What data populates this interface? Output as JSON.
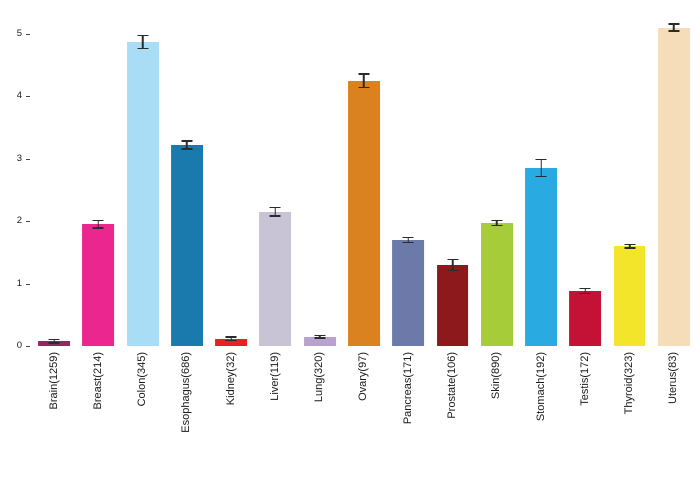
{
  "chart_data": {
    "type": "bar",
    "title": "",
    "xlabel": "",
    "ylabel": "",
    "categories": [
      "Brain(1259)",
      "Breast(214)",
      "Colon(345)",
      "Esophagus(686)",
      "Kidney(32)",
      "Liver(119)",
      "Lung(320)",
      "Ovary(97)",
      "Pancreas(171)",
      "Prostate(106)",
      "Skin(890)",
      "Stomach(192)",
      "Testis(172)",
      "Thyroid(323)",
      "Uterus(83)"
    ],
    "values": [
      0.08,
      1.95,
      4.87,
      3.22,
      0.12,
      2.15,
      0.15,
      4.25,
      1.7,
      1.3,
      1.97,
      2.85,
      0.88,
      1.6,
      5.1
    ],
    "errors": [
      0.04,
      0.07,
      0.12,
      0.08,
      0.04,
      0.08,
      0.03,
      0.12,
      0.05,
      0.1,
      0.05,
      0.15,
      0.05,
      0.04,
      0.07
    ],
    "colors": [
      "#8e2a63",
      "#ec268f",
      "#a9dcf5",
      "#1a7aad",
      "#ee1c25",
      "#c8c4d6",
      "#b9a2cd",
      "#d9821f",
      "#6b7aa8",
      "#8e191d",
      "#a6cc39",
      "#29abe2",
      "#c41236",
      "#f3e52a",
      "#f5ddba"
    ],
    "error_bar_color": "#2b2b2b",
    "yticks": [
      0,
      1,
      2,
      3,
      4,
      5
    ],
    "ylim": [
      0,
      5.35
    ],
    "grid": false,
    "legend": false,
    "bar_label_rotation": 90
  }
}
